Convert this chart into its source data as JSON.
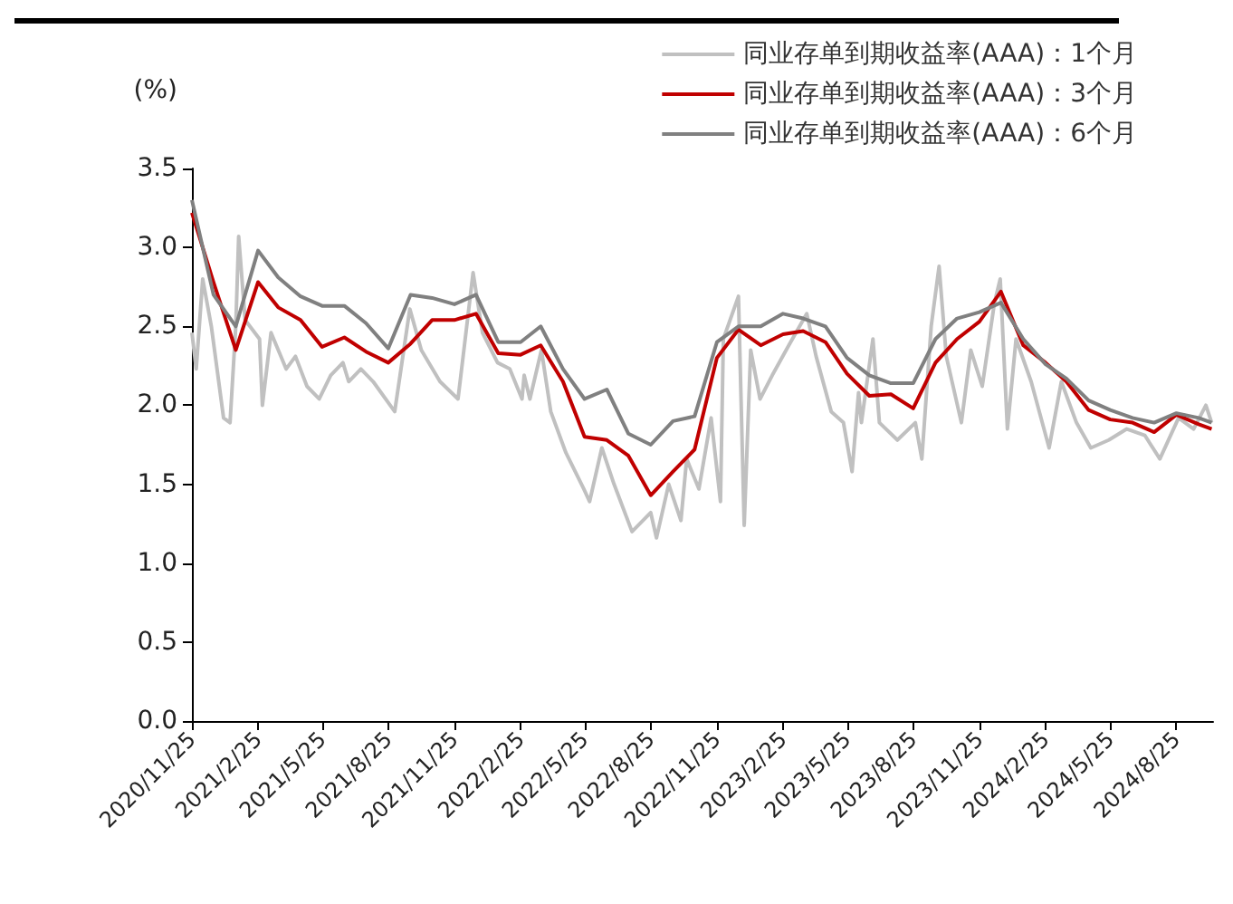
{
  "chart_data": {
    "type": "line",
    "ylabel": "(%)",
    "xlim": [
      "2020-11-25",
      "2024-10-15"
    ],
    "xticks": [
      {
        "value": "2020-11-25",
        "label": "2020/11/25"
      },
      {
        "value": "2021-02-25",
        "label": "2021/2/25"
      },
      {
        "value": "2021-05-25",
        "label": "2021/5/25"
      },
      {
        "value": "2021-08-25",
        "label": "2021/8/25"
      },
      {
        "value": "2021-11-25",
        "label": "2021/11/25"
      },
      {
        "value": "2022-02-25",
        "label": "2022/2/25"
      },
      {
        "value": "2022-05-25",
        "label": "2022/5/25"
      },
      {
        "value": "2022-08-25",
        "label": "2022/8/25"
      },
      {
        "value": "2022-11-25",
        "label": "2022/11/25"
      },
      {
        "value": "2023-02-25",
        "label": "2023/2/25"
      },
      {
        "value": "2023-05-25",
        "label": "2023/5/25"
      },
      {
        "value": "2023-08-25",
        "label": "2023/8/25"
      },
      {
        "value": "2023-11-25",
        "label": "2023/11/25"
      },
      {
        "value": "2024-02-25",
        "label": "2024/2/25"
      },
      {
        "value": "2024-05-25",
        "label": "2024/5/25"
      },
      {
        "value": "2024-08-25",
        "label": "2024/8/25"
      }
    ],
    "ylim": [
      0,
      3.5
    ],
    "yticks": [
      {
        "value": 0,
        "label": "0.0"
      },
      {
        "value": 0.5,
        "label": "0.5"
      },
      {
        "value": 1,
        "label": "1.0"
      },
      {
        "value": 1.5,
        "label": "1.5"
      },
      {
        "value": 2,
        "label": "2.0"
      },
      {
        "value": 2.5,
        "label": "2.5"
      },
      {
        "value": 3,
        "label": "3.0"
      },
      {
        "value": 3.5,
        "label": "3.5"
      }
    ],
    "x": [
      "2020-11-25",
      "2020-12-25",
      "2021-01-25",
      "2021-02-25",
      "2021-03-25",
      "2021-04-25",
      "2021-05-25",
      "2021-06-25",
      "2021-07-25",
      "2021-08-25",
      "2021-09-25",
      "2021-10-25",
      "2021-11-25",
      "2021-12-25",
      "2022-01-25",
      "2022-02-25",
      "2022-03-25",
      "2022-04-25",
      "2022-05-25",
      "2022-06-25",
      "2022-07-25",
      "2022-08-25",
      "2022-09-25",
      "2022-10-25",
      "2022-11-25",
      "2022-12-25",
      "2023-01-25",
      "2023-02-25",
      "2023-03-25",
      "2023-04-25",
      "2023-05-25",
      "2023-06-25",
      "2023-07-25",
      "2023-08-25",
      "2023-09-25",
      "2023-10-25",
      "2023-11-25",
      "2023-12-25",
      "2024-01-25",
      "2024-02-25",
      "2024-03-25",
      "2024-04-25",
      "2024-05-25",
      "2024-06-25",
      "2024-07-25",
      "2024-08-25",
      "2024-09-25",
      "2024-10-13"
    ],
    "series": [
      {
        "name": "同业存单到期收益率(AAA)：1个月",
        "color": "#c0c0c0",
        "x": [
          "2020-11-25",
          "2020-12-01",
          "2020-12-10",
          "2020-12-22",
          "2021-01-08",
          "2021-01-17",
          "2021-01-25",
          "2021-01-29",
          "2021-02-07",
          "2021-02-27",
          "2021-03-03",
          "2021-03-15",
          "2021-04-05",
          "2021-04-18",
          "2021-05-04",
          "2021-05-21",
          "2021-06-06",
          "2021-06-23",
          "2021-07-01",
          "2021-07-18",
          "2021-08-04",
          "2021-09-03",
          "2021-09-24",
          "2021-10-10",
          "2021-11-05",
          "2021-11-30",
          "2021-12-04",
          "2021-12-21",
          "2022-01-03",
          "2022-01-24",
          "2022-02-10",
          "2022-02-27",
          "2022-03-02",
          "2022-03-10",
          "2022-03-26",
          "2022-04-08",
          "2022-04-29",
          "2022-05-24",
          "2022-06-01",
          "2022-06-18",
          "2022-07-05",
          "2022-07-30",
          "2022-08-25",
          "2022-09-02",
          "2022-09-19",
          "2022-10-06",
          "2022-10-14",
          "2022-10-31",
          "2022-11-17",
          "2022-11-30",
          "2022-12-04",
          "2022-12-25",
          "2023-01-02",
          "2023-01-11",
          "2023-01-24",
          "2023-02-10",
          "2023-03-05",
          "2023-03-30",
          "2023-04-12",
          "2023-05-03",
          "2023-05-20",
          "2023-06-01",
          "2023-06-10",
          "2023-06-14",
          "2023-06-30",
          "2023-07-09",
          "2023-08-03",
          "2023-08-28",
          "2023-09-06",
          "2023-09-19",
          "2023-09-30",
          "2023-10-10",
          "2023-10-31",
          "2023-11-13",
          "2023-11-29",
          "2023-12-16",
          "2023-12-24",
          "2024-01-03",
          "2024-01-15",
          "2024-02-05",
          "2024-03-01",
          "2024-03-18",
          "2024-04-08",
          "2024-04-28",
          "2024-05-23",
          "2024-06-17",
          "2024-07-12",
          "2024-08-02",
          "2024-08-28",
          "2024-09-18",
          "2024-10-05",
          "2024-10-13"
        ],
        "values": [
          2.46,
          2.23,
          2.8,
          2.5,
          1.92,
          1.89,
          2.5,
          3.07,
          2.54,
          2.42,
          2.0,
          2.46,
          2.23,
          2.31,
          2.12,
          2.04,
          2.19,
          2.27,
          2.15,
          2.23,
          2.15,
          1.96,
          2.61,
          2.35,
          2.15,
          2.04,
          2.19,
          2.84,
          2.46,
          2.27,
          2.23,
          2.04,
          2.19,
          2.04,
          2.35,
          1.96,
          1.7,
          1.47,
          1.39,
          1.73,
          1.5,
          1.2,
          1.32,
          1.16,
          1.5,
          1.27,
          1.66,
          1.47,
          1.92,
          1.39,
          2.42,
          2.69,
          1.24,
          2.35,
          2.04,
          2.19,
          2.38,
          2.58,
          2.31,
          1.96,
          1.89,
          1.58,
          2.08,
          1.89,
          2.42,
          1.89,
          1.78,
          1.89,
          1.66,
          2.5,
          2.88,
          2.31,
          1.89,
          2.35,
          2.12,
          2.65,
          2.8,
          1.85,
          2.42,
          2.15,
          1.73,
          2.15,
          1.89,
          1.73,
          1.78,
          1.85,
          1.81,
          1.66,
          1.92,
          1.85,
          2.0,
          1.89
        ]
      },
      {
        "name": "同业存单到期收益率(AAA)：3个月",
        "color": "#c00000",
        "values": [
          3.22,
          2.78,
          2.35,
          2.78,
          2.62,
          2.54,
          2.37,
          2.43,
          2.34,
          2.27,
          2.39,
          2.54,
          2.54,
          2.58,
          2.33,
          2.32,
          2.38,
          2.15,
          1.8,
          1.78,
          1.68,
          1.43,
          1.58,
          1.72,
          2.3,
          2.48,
          2.38,
          2.45,
          2.47,
          2.4,
          2.2,
          2.06,
          2.07,
          1.98,
          2.27,
          2.42,
          2.53,
          2.72,
          2.38,
          2.27,
          2.15,
          1.97,
          1.91,
          1.89,
          1.83,
          1.94,
          1.88,
          1.85
        ]
      },
      {
        "name": "同业存单到期收益率(AAA)：6个月",
        "color": "#808080",
        "values": [
          3.3,
          2.7,
          2.5,
          2.98,
          2.81,
          2.69,
          2.63,
          2.63,
          2.52,
          2.36,
          2.7,
          2.68,
          2.64,
          2.7,
          2.4,
          2.4,
          2.5,
          2.23,
          2.04,
          2.1,
          1.82,
          1.75,
          1.9,
          1.93,
          2.4,
          2.5,
          2.5,
          2.58,
          2.55,
          2.5,
          2.3,
          2.19,
          2.14,
          2.14,
          2.42,
          2.55,
          2.59,
          2.65,
          2.42,
          2.26,
          2.17,
          2.03,
          1.97,
          1.92,
          1.89,
          1.95,
          1.92,
          1.89
        ]
      }
    ],
    "legend": "top right",
    "grid": false,
    "marker": "none",
    "line_style": "solid"
  }
}
